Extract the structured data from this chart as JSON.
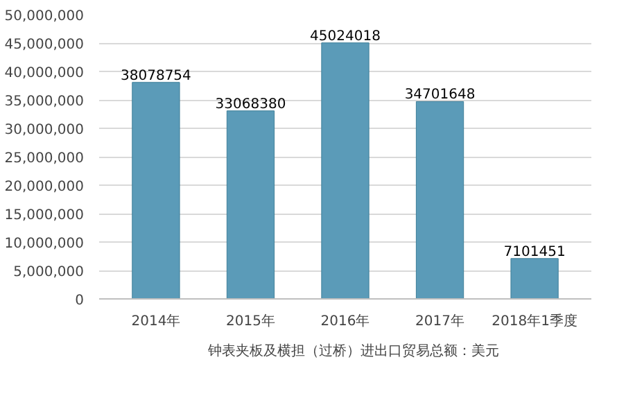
{
  "chart_data": {
    "type": "bar",
    "categories": [
      "2014年",
      "2015年",
      "2016年",
      "2017年",
      "2018年1季度"
    ],
    "series": [
      {
        "name": "钟表夹板及横担（过桥）进出口贸易总额：美元",
        "color": "#5b9bb8",
        "values": [
          38078754,
          33068380,
          45024018,
          34701648,
          7101451
        ]
      }
    ],
    "ylim": [
      0,
      50000000
    ],
    "yticks": [
      0,
      {
        "value": 5000000,
        "label": "5,000,000"
      },
      {
        "value": 10000000,
        "label": "10,000,000"
      },
      {
        "value": 15000000,
        "label": "15,000,000"
      },
      {
        "value": 20000000,
        "label": "20,000,000"
      },
      {
        "value": 25000000,
        "label": "25,000,000"
      },
      {
        "value": 30000000,
        "label": "30,000,000"
      },
      {
        "value": 35000000,
        "label": "35,000,000"
      },
      {
        "value": 40000000,
        "label": "40,000,000"
      },
      {
        "value": 45000000,
        "label": "45,000,000"
      },
      {
        "value": 50000000,
        "label": "50,000,000"
      }
    ],
    "grid": "y",
    "data_labels": true,
    "legend": "bottom"
  }
}
